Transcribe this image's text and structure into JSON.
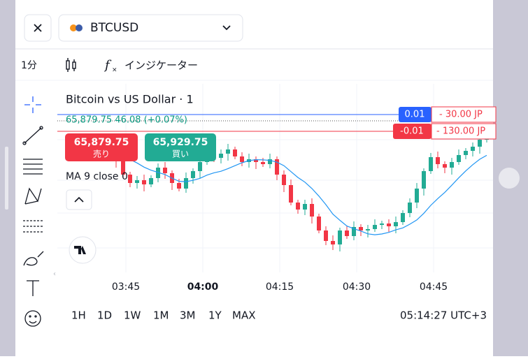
{
  "header": {
    "symbol": "BTCUSD"
  },
  "toolbar": {
    "interval": "1分",
    "indicators": "インジケーター"
  },
  "chart": {
    "title": "Bitcoin vs US Dollar · 1",
    "quote": "65,879.75 46.08 (+0.07%)",
    "orders": [
      {
        "qty": "0.01",
        "pnl": "- 30.00 JP"
      },
      {
        "qty": "-0.01",
        "pnl": "- 130.00 JP"
      }
    ],
    "sell": {
      "price": "65,879.75",
      "label": "売り"
    },
    "buy": {
      "price": "65,929.75",
      "label": "買い"
    },
    "indicator": "MA 9 close 0",
    "time_labels": [
      "03:45",
      "04:00",
      "04:15",
      "04:30",
      "04:45"
    ]
  },
  "footer": {
    "ranges": [
      "1H",
      "1D",
      "1W",
      "1M",
      "3M",
      "1Y",
      "MAX"
    ],
    "clock": "05:14:27 UTC+3"
  }
}
